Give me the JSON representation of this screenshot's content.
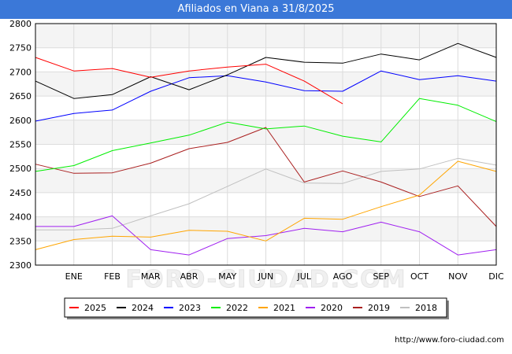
{
  "title": "Afiliados en Viana a 31/8/2025",
  "watermark": "http://www.foro-ciudad.com",
  "background_watermark": "FORO-CIUDAD.COM",
  "colors": {
    "title_bg": "#3b78d8",
    "band": "#f4f4f4",
    "grid": "#dcdcdc"
  },
  "chart_data": {
    "type": "line",
    "categories": [
      "",
      "ENE",
      "FEB",
      "MAR",
      "ABR",
      "MAY",
      "JUN",
      "JUL",
      "AGO",
      "SEP",
      "OCT",
      "NOV",
      "DIC"
    ],
    "ylim": [
      2300,
      2800
    ],
    "yticks": [
      2300,
      2350,
      2400,
      2450,
      2500,
      2550,
      2600,
      2650,
      2700,
      2750,
      2800
    ],
    "grid": true,
    "legend_position": "bottom",
    "series": [
      {
        "name": "2025",
        "color": "#ff0000",
        "values": [
          2730,
          2702,
          2707,
          2689,
          2702,
          2710,
          2716,
          2681,
          2634,
          null,
          null,
          null,
          null
        ]
      },
      {
        "name": "2024",
        "color": "#000000",
        "values": [
          2681,
          2645,
          2653,
          2690,
          2663,
          2694,
          2730,
          2720,
          2718,
          2737,
          2725,
          2759,
          2730
        ]
      },
      {
        "name": "2023",
        "color": "#0000ff",
        "values": [
          2598,
          2614,
          2621,
          2660,
          2688,
          2692,
          2679,
          2661,
          2660,
          2702,
          2684,
          2692,
          2681
        ]
      },
      {
        "name": "2022",
        "color": "#00ee00",
        "values": [
          2494,
          2506,
          2537,
          2553,
          2569,
          2596,
          2582,
          2588,
          2567,
          2555,
          2645,
          2631,
          2597
        ]
      },
      {
        "name": "2021",
        "color": "#ffa500",
        "values": [
          2332,
          2353,
          2360,
          2358,
          2372,
          2370,
          2350,
          2397,
          2395,
          2421,
          2445,
          2515,
          2494
        ]
      },
      {
        "name": "2020",
        "color": "#a020f0",
        "values": [
          2380,
          2380,
          2402,
          2332,
          2321,
          2355,
          2361,
          2376,
          2369,
          2389,
          2369,
          2321,
          2332
        ]
      },
      {
        "name": "2019",
        "color": "#aa2020",
        "values": [
          2509,
          2490,
          2491,
          2511,
          2541,
          2554,
          2585,
          2472,
          2495,
          2472,
          2442,
          2464,
          2380
        ]
      },
      {
        "name": "2018",
        "color": "#c0c0c0",
        "values": [
          2373,
          2373,
          2376,
          2402,
          2427,
          2463,
          2499,
          2470,
          2469,
          2494,
          2499,
          2521,
          2507
        ]
      }
    ]
  }
}
